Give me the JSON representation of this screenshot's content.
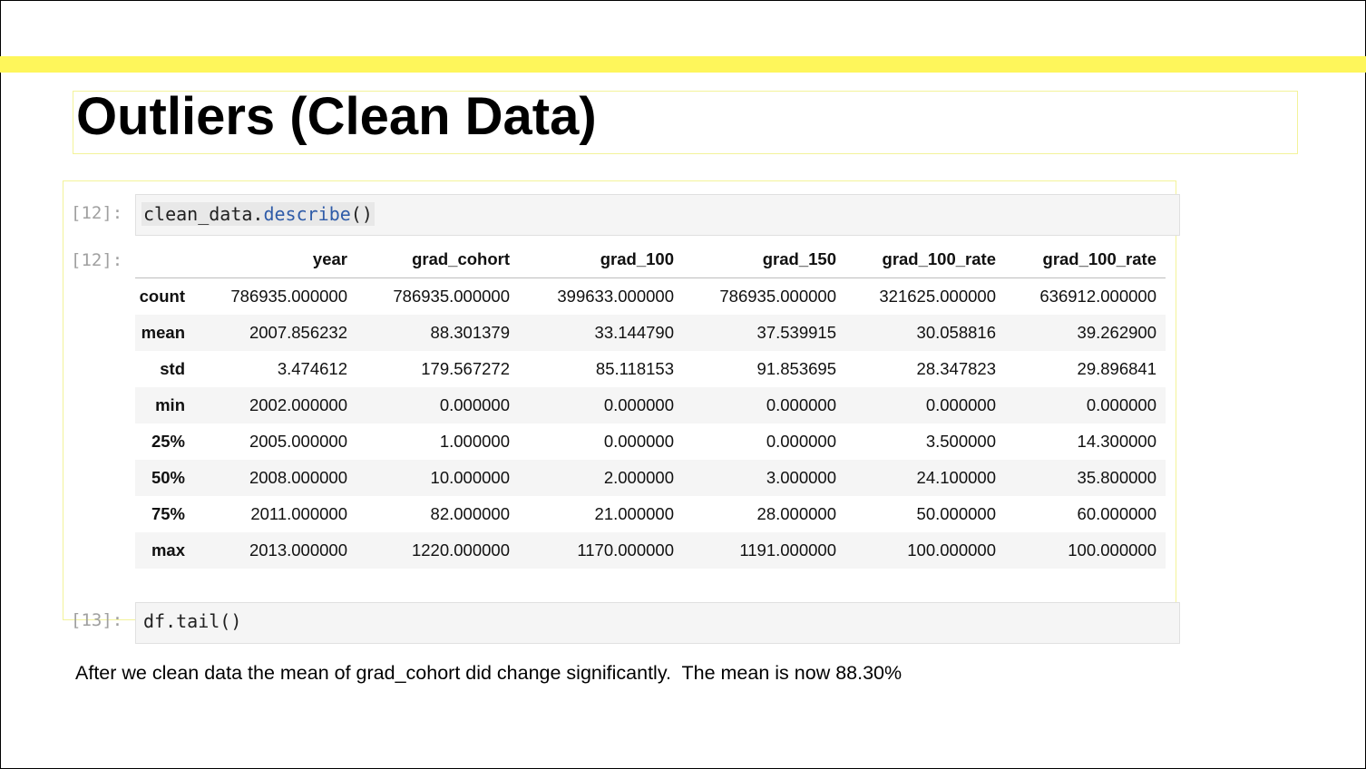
{
  "slide": {
    "title": "Outliers (Clean Data)",
    "caption": "After we clean data the mean of grad_cohort did change significantly.  The mean is now 88.30%",
    "accent_color": "#fef65b",
    "box_border_color": "#f3f39a"
  },
  "notebook": {
    "input_prompt": "[12]:",
    "output_prompt": "[12]:",
    "code_object": "clean_data.",
    "code_method": "describe",
    "code_suffix": "()",
    "next_prompt": "[13]:",
    "next_code": "df.tail()"
  },
  "table": {
    "columns": [
      "",
      "year",
      "grad_cohort",
      "grad_100",
      "grad_150",
      "grad_100_rate",
      "grad_100_rate"
    ],
    "rows": [
      [
        "count",
        "786935.000000",
        "786935.000000",
        "399633.000000",
        "786935.000000",
        "321625.000000",
        "636912.000000"
      ],
      [
        "mean",
        "2007.856232",
        "88.301379",
        "33.144790",
        "37.539915",
        "30.058816",
        "39.262900"
      ],
      [
        "std",
        "3.474612",
        "179.567272",
        "85.118153",
        "91.853695",
        "28.347823",
        "29.896841"
      ],
      [
        "min",
        "2002.000000",
        "0.000000",
        "0.000000",
        "0.000000",
        "0.000000",
        "0.000000"
      ],
      [
        "25%",
        "2005.000000",
        "1.000000",
        "0.000000",
        "0.000000",
        "3.500000",
        "14.300000"
      ],
      [
        "50%",
        "2008.000000",
        "10.000000",
        "2.000000",
        "3.000000",
        "24.100000",
        "35.800000"
      ],
      [
        "75%",
        "2011.000000",
        "82.000000",
        "21.000000",
        "28.000000",
        "50.000000",
        "60.000000"
      ],
      [
        "max",
        "2013.000000",
        "1220.000000",
        "1170.000000",
        "1191.000000",
        "100.000000",
        "100.000000"
      ]
    ]
  }
}
